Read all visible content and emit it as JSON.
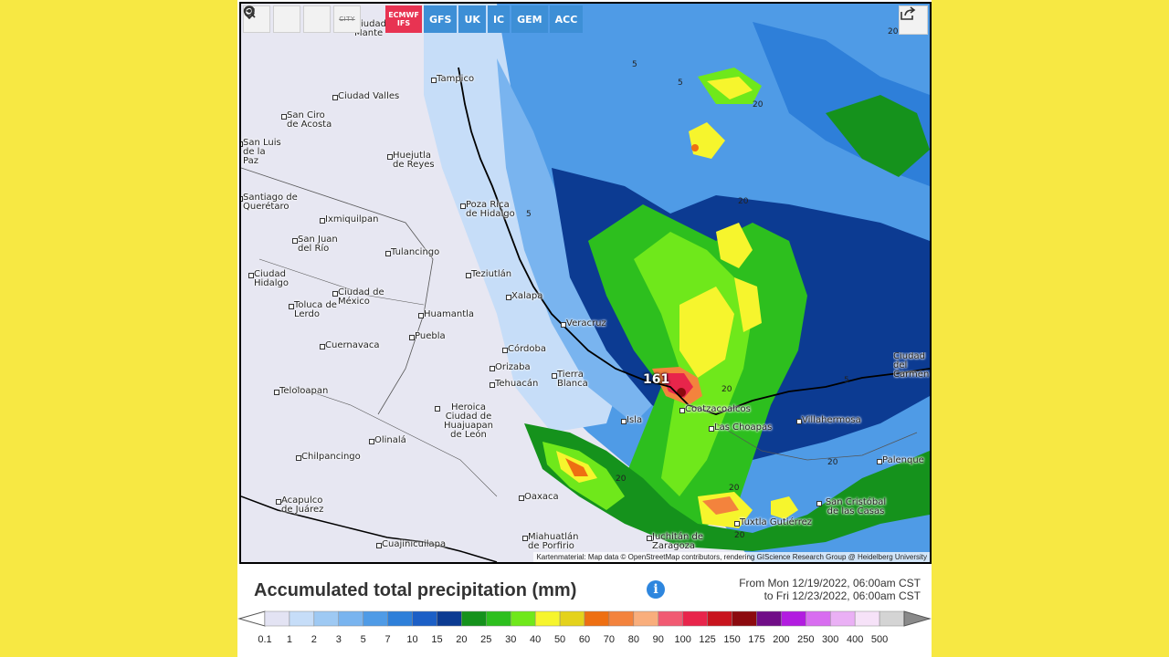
{
  "toolbar": {
    "icons": [
      "refresh-icon",
      "location-pin-icon",
      "zoom-out-icon"
    ],
    "city_label": "CITY"
  },
  "models": [
    {
      "label": "ECMWF IFS",
      "active": true
    },
    {
      "label": "GFS",
      "active": false
    },
    {
      "label": "UK",
      "active": false
    },
    {
      "label": "IC",
      "active": false
    },
    {
      "label": "GEM",
      "active": false
    },
    {
      "label": "ACC",
      "active": false
    }
  ],
  "map": {
    "max_value": "161",
    "attribution": "Kartenmaterial: Map data © OpenStreetMap contributors, rendering GIScience Research Group @ Heidelberg University",
    "cities": [
      {
        "name": "Tampico"
      },
      {
        "name": "Ciudad Valles"
      },
      {
        "name": "San Ciro de Acosta"
      },
      {
        "name": "San Luis de la Paz"
      },
      {
        "name": "Huejutla de Reyes"
      },
      {
        "name": "Santiago de Querétaro"
      },
      {
        "name": "Poza Rica de Hidalgo"
      },
      {
        "name": "Ixmiquilpan"
      },
      {
        "name": "San Juan del Río"
      },
      {
        "name": "Tulancingo"
      },
      {
        "name": "Teziutlán"
      },
      {
        "name": "Ciudad Hidalgo"
      },
      {
        "name": "Xalapa"
      },
      {
        "name": "Ciudad de México"
      },
      {
        "name": "Toluca de Lerdo"
      },
      {
        "name": "Huamantla"
      },
      {
        "name": "Puebla"
      },
      {
        "name": "Veracruz"
      },
      {
        "name": "Cuernavaca"
      },
      {
        "name": "Córdoba"
      },
      {
        "name": "Orizaba"
      },
      {
        "name": "Tierra Blanca"
      },
      {
        "name": "Tehuacán"
      },
      {
        "name": "Teloloapan"
      },
      {
        "name": "Heroica Ciudad de Huajuapan de León"
      },
      {
        "name": "Olinalá"
      },
      {
        "name": "Chilpancingo"
      },
      {
        "name": "Acapulco de Juárez"
      },
      {
        "name": "Oaxaca"
      },
      {
        "name": "Isla"
      },
      {
        "name": "Coatzacoalcos"
      },
      {
        "name": "Las Choapas"
      },
      {
        "name": "Villahermosa"
      },
      {
        "name": "Palenque"
      },
      {
        "name": "Ciudad del Carmen"
      },
      {
        "name": "San Cristóbal de las Casas"
      },
      {
        "name": "Tuxtla Gutiérrez"
      },
      {
        "name": "Juchitán de Zaragoza"
      },
      {
        "name": "Miahuatlán de Porfirio"
      },
      {
        "name": "Cuajinicuilapa"
      },
      {
        "name": "Ciudad Mante"
      }
    ],
    "contours": [
      "5",
      "5",
      "5",
      "20",
      "20",
      "20",
      "20",
      "20",
      "20",
      "5",
      "20",
      "20"
    ]
  },
  "title": "Accumulated total precipitation (mm)",
  "dates": {
    "from": "From Mon 12/19/2022, 06:00am CST",
    "to": "to Fri 12/23/2022, 06:00am CST"
  },
  "legend": {
    "labels": [
      "0.1",
      "1",
      "2",
      "3",
      "5",
      "7",
      "10",
      "15",
      "20",
      "25",
      "30",
      "40",
      "50",
      "60",
      "70",
      "80",
      "90",
      "100",
      "125",
      "150",
      "175",
      "200",
      "250",
      "300",
      "400",
      "500"
    ],
    "colors": [
      "#e3e3f3",
      "#c6ddf8",
      "#9ec9f3",
      "#79b4ef",
      "#4f9be6",
      "#2e7fd9",
      "#1c5fc6",
      "#0c3b92",
      "#15921c",
      "#2dbf1e",
      "#6fe81b",
      "#f6f52d",
      "#e4d21c",
      "#ee6f12",
      "#f3833d",
      "#f9ae7c",
      "#f15a72",
      "#e8254b",
      "#c8141e",
      "#8c0a0e",
      "#700d87",
      "#b21ce0",
      "#d86df0",
      "#eab0f5",
      "#f6e2f8",
      "#d4d4d4"
    ]
  }
}
